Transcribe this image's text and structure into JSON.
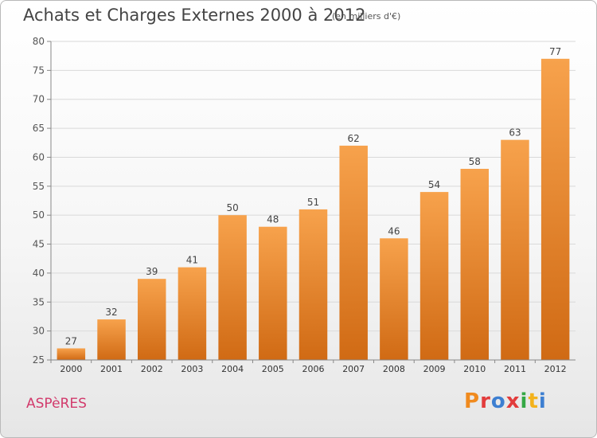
{
  "header": {
    "title": "Achats et Charges Externes 2000 à 2012",
    "subtitle": "(en milliers d'€)"
  },
  "footer": {
    "commune": "ASPèRES",
    "logo_letters": [
      "P",
      "r",
      "o",
      "x",
      "i",
      "t",
      "i"
    ],
    "logo_colors": [
      "#f08a1e",
      "#e23c3c",
      "#3d7fd1",
      "#e23c3c",
      "#35a845",
      "#f3b21b",
      "#3d7fd1"
    ]
  },
  "colors": {
    "bar_light": "#f7a24c",
    "bar_dark": "#d06a14",
    "grid": "#d9d9d9",
    "axis": "#888888",
    "title": "#444444",
    "commune": "#d23a6c"
  },
  "chart_data": {
    "type": "bar",
    "title": "Achats et Charges Externes 2000 à 2012",
    "subtitle": "(en milliers d'€)",
    "xlabel": "",
    "ylabel": "",
    "categories": [
      "2000",
      "2001",
      "2002",
      "2003",
      "2004",
      "2005",
      "2006",
      "2007",
      "2008",
      "2009",
      "2010",
      "2011",
      "2012"
    ],
    "values": [
      27,
      32,
      39,
      41,
      50,
      48,
      51,
      62,
      46,
      54,
      58,
      63,
      77
    ],
    "data_labels": [
      "27",
      "32",
      "39",
      "41",
      "50",
      "48",
      "51",
      "62",
      "46",
      "54",
      "58",
      "63",
      "77"
    ],
    "ylim": [
      25,
      80
    ],
    "yticks": [
      25,
      30,
      35,
      40,
      45,
      50,
      55,
      60,
      65,
      70,
      75,
      80
    ],
    "ytick_labels": [
      "25",
      "30",
      "35",
      "40",
      "45",
      "50",
      "55",
      "60",
      "65",
      "70",
      "75",
      "80"
    ],
    "grid": true,
    "legend": "none"
  }
}
